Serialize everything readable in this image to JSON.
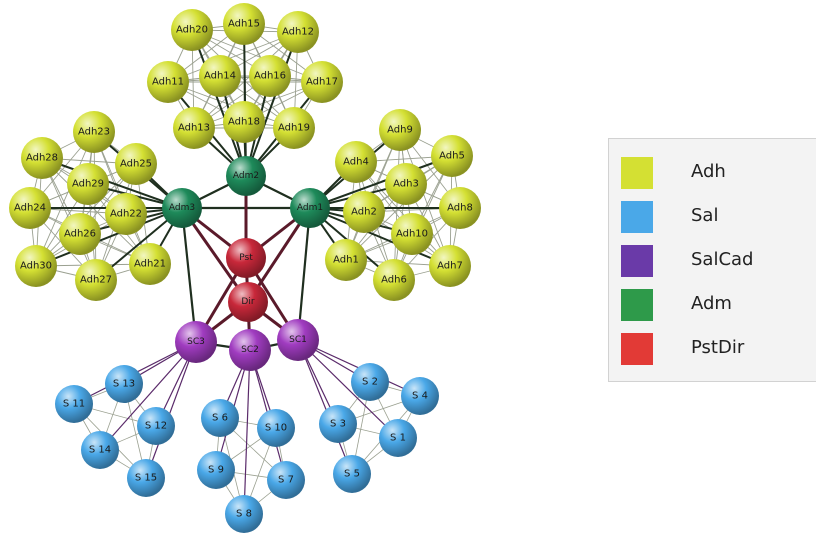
{
  "legend": {
    "items": [
      {
        "label": "Adh",
        "color": "#d4e033"
      },
      {
        "label": "Sal",
        "color": "#4aa8e8"
      },
      {
        "label": "SalCad",
        "color": "#6a3aa8"
      },
      {
        "label": "Adm",
        "color": "#2e9a4a"
      },
      {
        "label": "PstDir",
        "color": "#e23a36"
      }
    ]
  },
  "colors": {
    "Adh": "#d4e033",
    "Sal": "#4aa8e8",
    "SalCad": "#a03cc0",
    "Adm": "#1e8a5a",
    "PstDir": "#c8283a",
    "edge_dark": "#1f2f1f",
    "edge_light": "#9aa090",
    "edge_purple": "#5a2a6a"
  },
  "nodes": [
    {
      "id": "Adh20",
      "label": "Adh20",
      "group": "Adh"
    },
    {
      "id": "Adh15",
      "label": "Adh15",
      "group": "Adh"
    },
    {
      "id": "Adh12",
      "label": "Adh12",
      "group": "Adh"
    },
    {
      "id": "Adh11",
      "label": "Adh11",
      "group": "Adh"
    },
    {
      "id": "Adh14",
      "label": "Adh14",
      "group": "Adh"
    },
    {
      "id": "Adh16",
      "label": "Adh16",
      "group": "Adh"
    },
    {
      "id": "Adh17",
      "label": "Adh17",
      "group": "Adh"
    },
    {
      "id": "Adh13",
      "label": "Adh13",
      "group": "Adh"
    },
    {
      "id": "Adh18",
      "label": "Adh18",
      "group": "Adh"
    },
    {
      "id": "Adh19",
      "label": "Adh19",
      "group": "Adh"
    },
    {
      "id": "Adh23",
      "label": "Adh23",
      "group": "Adh"
    },
    {
      "id": "Adh28",
      "label": "Adh28",
      "group": "Adh"
    },
    {
      "id": "Adh25",
      "label": "Adh25",
      "group": "Adh"
    },
    {
      "id": "Adh29",
      "label": "Adh29",
      "group": "Adh"
    },
    {
      "id": "Adh24",
      "label": "Adh24",
      "group": "Adh"
    },
    {
      "id": "Adh22",
      "label": "Adh22",
      "group": "Adh"
    },
    {
      "id": "Adh26",
      "label": "Adh26",
      "group": "Adh"
    },
    {
      "id": "Adh30",
      "label": "Adh30",
      "group": "Adh"
    },
    {
      "id": "Adh27",
      "label": "Adh27",
      "group": "Adh"
    },
    {
      "id": "Adh21",
      "label": "Adh21",
      "group": "Adh"
    },
    {
      "id": "Adh9",
      "label": "Adh9",
      "group": "Adh"
    },
    {
      "id": "Adh4",
      "label": "Adh4",
      "group": "Adh"
    },
    {
      "id": "Adh5",
      "label": "Adh5",
      "group": "Adh"
    },
    {
      "id": "Adh3",
      "label": "Adh3",
      "group": "Adh"
    },
    {
      "id": "Adh2",
      "label": "Adh2",
      "group": "Adh"
    },
    {
      "id": "Adh8",
      "label": "Adh8",
      "group": "Adh"
    },
    {
      "id": "Adh10",
      "label": "Adh10",
      "group": "Adh"
    },
    {
      "id": "Adh1",
      "label": "Adh1",
      "group": "Adh"
    },
    {
      "id": "Adh7",
      "label": "Adh7",
      "group": "Adh"
    },
    {
      "id": "Adh6",
      "label": "Adh6",
      "group": "Adh"
    },
    {
      "id": "Adm2",
      "label": "Adm2",
      "group": "Adm"
    },
    {
      "id": "Adm3",
      "label": "Adm3",
      "group": "Adm"
    },
    {
      "id": "Adm1",
      "label": "Adm1",
      "group": "Adm"
    },
    {
      "id": "Pst",
      "label": "Pst",
      "group": "PstDir"
    },
    {
      "id": "Dir",
      "label": "Dir",
      "group": "PstDir"
    },
    {
      "id": "SC3",
      "label": "SC3",
      "group": "SalCad"
    },
    {
      "id": "SC2",
      "label": "SC2",
      "group": "SalCad"
    },
    {
      "id": "SC1",
      "label": "SC1",
      "group": "SalCad"
    },
    {
      "id": "S13",
      "label": "S 13",
      "group": "Sal"
    },
    {
      "id": "S11",
      "label": "S 11",
      "group": "Sal"
    },
    {
      "id": "S12",
      "label": "S 12",
      "group": "Sal"
    },
    {
      "id": "S14",
      "label": "S 14",
      "group": "Sal"
    },
    {
      "id": "S15",
      "label": "S 15",
      "group": "Sal"
    },
    {
      "id": "S6",
      "label": "S 6",
      "group": "Sal"
    },
    {
      "id": "S10",
      "label": "S 10",
      "group": "Sal"
    },
    {
      "id": "S9",
      "label": "S 9",
      "group": "Sal"
    },
    {
      "id": "S7",
      "label": "S 7",
      "group": "Sal"
    },
    {
      "id": "S8",
      "label": "S 8",
      "group": "Sal"
    },
    {
      "id": "S2",
      "label": "S 2",
      "group": "Sal"
    },
    {
      "id": "S4",
      "label": "S 4",
      "group": "Sal"
    },
    {
      "id": "S3",
      "label": "S 3",
      "group": "Sal"
    },
    {
      "id": "S1",
      "label": "S 1",
      "group": "Sal"
    },
    {
      "id": "S5",
      "label": "S 5",
      "group": "Sal"
    }
  ],
  "clusters": [
    {
      "hub": "Adm2",
      "members": [
        "Adh20",
        "Adh15",
        "Adh12",
        "Adh11",
        "Adh14",
        "Adh16",
        "Adh17",
        "Adh13",
        "Adh18",
        "Adh19"
      ]
    },
    {
      "hub": "Adm3",
      "members": [
        "Adh23",
        "Adh28",
        "Adh25",
        "Adh29",
        "Adh24",
        "Adh22",
        "Adh26",
        "Adh30",
        "Adh27",
        "Adh21"
      ]
    },
    {
      "hub": "Adm1",
      "members": [
        "Adh9",
        "Adh4",
        "Adh5",
        "Adh3",
        "Adh2",
        "Adh8",
        "Adh10",
        "Adh1",
        "Adh7",
        "Adh6"
      ]
    },
    {
      "hub": "SC3",
      "members": [
        "S13",
        "S11",
        "S12",
        "S14",
        "S15"
      ]
    },
    {
      "hub": "SC2",
      "members": [
        "S6",
        "S10",
        "S9",
        "S7",
        "S8"
      ]
    },
    {
      "hub": "SC1",
      "members": [
        "S2",
        "S4",
        "S3",
        "S1",
        "S5"
      ]
    }
  ],
  "hub_links": [
    [
      "Adm2",
      "Adm3"
    ],
    [
      "Adm2",
      "Adm1"
    ],
    [
      "Adm3",
      "Adm1"
    ],
    [
      "Adm2",
      "Pst"
    ],
    [
      "Adm3",
      "Pst"
    ],
    [
      "Adm1",
      "Pst"
    ],
    [
      "Adm3",
      "Dir"
    ],
    [
      "Adm1",
      "Dir"
    ],
    [
      "Pst",
      "Dir"
    ],
    [
      "Dir",
      "SC3"
    ],
    [
      "Dir",
      "SC2"
    ],
    [
      "Dir",
      "SC1"
    ],
    [
      "Pst",
      "SC3"
    ],
    [
      "Pst",
      "SC1"
    ],
    [
      "SC3",
      "SC2"
    ],
    [
      "SC2",
      "SC1"
    ],
    [
      "Adm3",
      "SC3"
    ],
    [
      "Adm1",
      "SC1"
    ]
  ]
}
